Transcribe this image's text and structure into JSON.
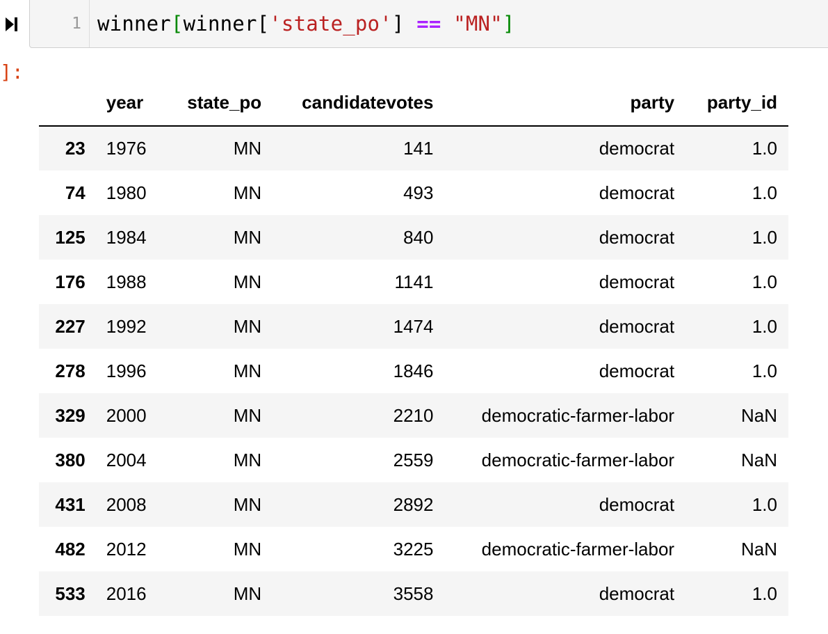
{
  "code_cell": {
    "line_number": "1",
    "tokens": {
      "t1": "winner",
      "t2": "[",
      "t3": "winner[",
      "t4": "'state_po'",
      "t5": "] ",
      "t6": "==",
      "t7": " ",
      "t8": "\"MN\"",
      "t9": "]"
    },
    "run_icon": "run-next-icon"
  },
  "output": {
    "prompt": "]:"
  },
  "dataframe": {
    "columns": [
      "",
      "year",
      "state_po",
      "candidatevotes",
      "party",
      "party_id"
    ],
    "rows": [
      {
        "index": "23",
        "year": "1976",
        "state_po": "MN",
        "candidatevotes": "141",
        "party": "democrat",
        "party_id": "1.0"
      },
      {
        "index": "74",
        "year": "1980",
        "state_po": "MN",
        "candidatevotes": "493",
        "party": "democrat",
        "party_id": "1.0"
      },
      {
        "index": "125",
        "year": "1984",
        "state_po": "MN",
        "candidatevotes": "840",
        "party": "democrat",
        "party_id": "1.0"
      },
      {
        "index": "176",
        "year": "1988",
        "state_po": "MN",
        "candidatevotes": "1141",
        "party": "democrat",
        "party_id": "1.0"
      },
      {
        "index": "227",
        "year": "1992",
        "state_po": "MN",
        "candidatevotes": "1474",
        "party": "democrat",
        "party_id": "1.0"
      },
      {
        "index": "278",
        "year": "1996",
        "state_po": "MN",
        "candidatevotes": "1846",
        "party": "democrat",
        "party_id": "1.0"
      },
      {
        "index": "329",
        "year": "2000",
        "state_po": "MN",
        "candidatevotes": "2210",
        "party": "democratic-farmer-labor",
        "party_id": "NaN"
      },
      {
        "index": "380",
        "year": "2004",
        "state_po": "MN",
        "candidatevotes": "2559",
        "party": "democratic-farmer-labor",
        "party_id": "NaN"
      },
      {
        "index": "431",
        "year": "2008",
        "state_po": "MN",
        "candidatevotes": "2892",
        "party": "democrat",
        "party_id": "1.0"
      },
      {
        "index": "482",
        "year": "2012",
        "state_po": "MN",
        "candidatevotes": "3225",
        "party": "democratic-farmer-labor",
        "party_id": "NaN"
      },
      {
        "index": "533",
        "year": "2016",
        "state_po": "MN",
        "candidatevotes": "3558",
        "party": "democrat",
        "party_id": "1.0"
      }
    ]
  },
  "colors": {
    "cell_background": "#f5f5f5",
    "cell_border": "#cfcfcf",
    "prompt_color": "#d84315",
    "string_color": "#ba2121",
    "bracket_color": "#008800",
    "operator_color": "#aa22ff"
  }
}
